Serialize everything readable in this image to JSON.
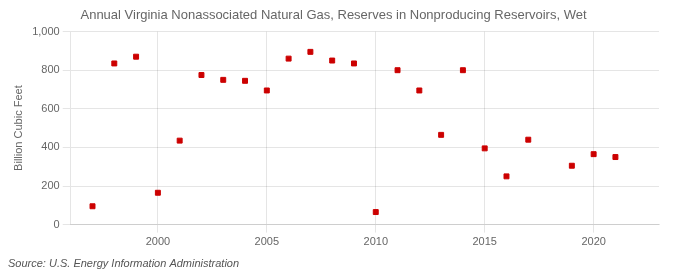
{
  "chart_data": {
    "type": "scatter",
    "title": "Annual Virginia Nonassociated Natural Gas, Reserves in Nonproducing Reservoirs, Wet",
    "y_label": "Billion Cubic Feet",
    "annotations": [
      "Source: U.S. Energy Information Administration"
    ],
    "x": [
      1997,
      1998,
      1999,
      2000,
      2001,
      2002,
      2003,
      2004,
      2005,
      2006,
      2007,
      2008,
      2009,
      2010,
      2011,
      2012,
      2013,
      2014,
      2015,
      2016,
      2017,
      2019,
      2020,
      2021
    ],
    "values": [
      95,
      835,
      870,
      165,
      435,
      775,
      750,
      745,
      695,
      860,
      895,
      850,
      835,
      65,
      800,
      695,
      465,
      800,
      395,
      250,
      440,
      305,
      365,
      350
    ],
    "color": "#cc0000",
    "marker": "square",
    "xlim": [
      1996,
      2023
    ],
    "xticks": [
      2000,
      2005,
      2010,
      2015,
      2020
    ],
    "ylim": [
      0,
      1000
    ],
    "yticks": [
      0,
      200,
      400,
      600,
      800,
      {
        "value": 1000,
        "label": "1,000"
      }
    ],
    "grid": true
  }
}
